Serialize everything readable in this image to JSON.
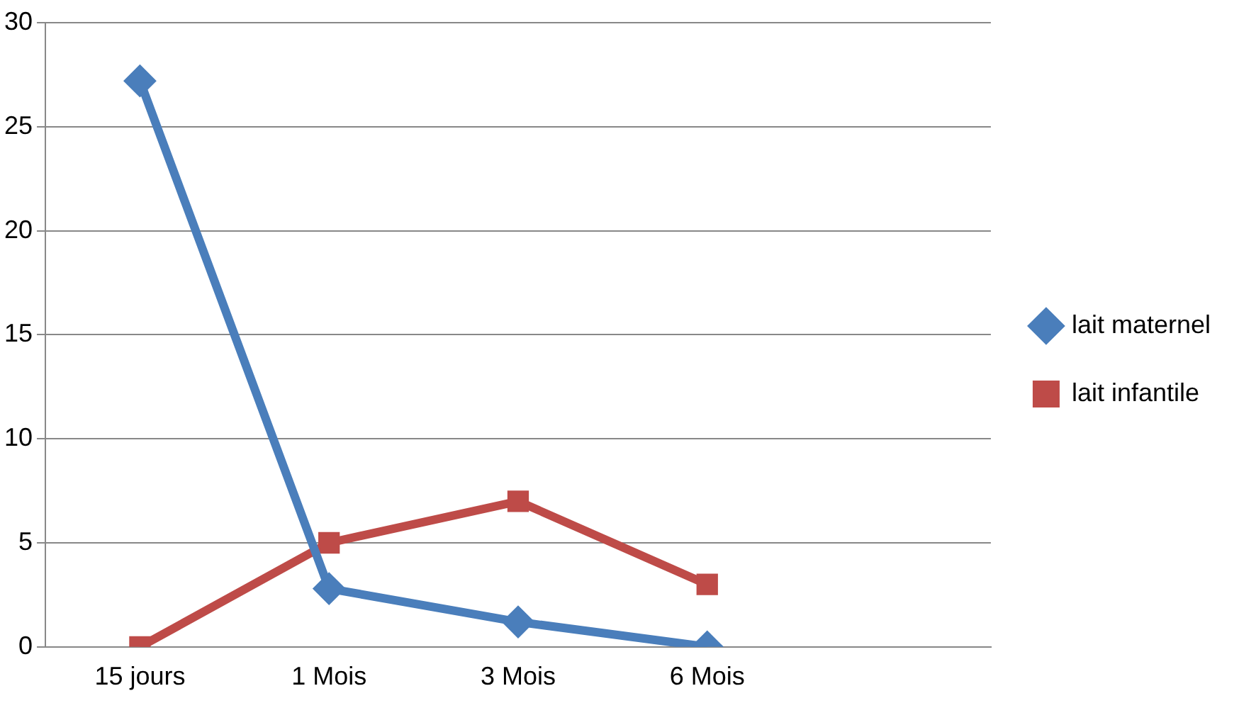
{
  "chart_data": {
    "type": "line",
    "categories": [
      "15 jours",
      "1 Mois",
      "3 Mois",
      "6 Mois",
      null
    ],
    "series": [
      {
        "name": "lait maternel",
        "color": "#4a7ebb",
        "marker": "diamond",
        "values": [
          27.2,
          2.8,
          1.2,
          0,
          null
        ]
      },
      {
        "name": "lait infantile",
        "color": "#be4b48",
        "marker": "square",
        "values": [
          0,
          5,
          7,
          3,
          null
        ]
      }
    ],
    "ylim": [
      0,
      30
    ],
    "yticks": [
      0,
      5,
      10,
      15,
      20,
      25,
      30
    ],
    "grid": "y",
    "legend": "right"
  }
}
